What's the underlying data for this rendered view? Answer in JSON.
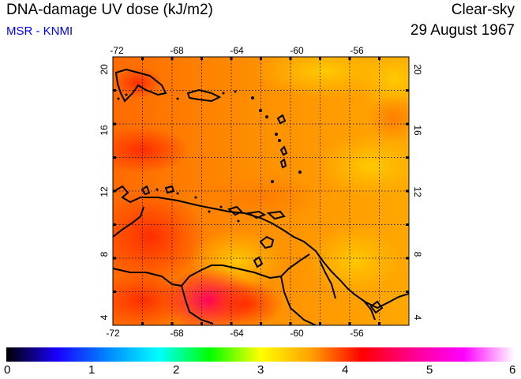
{
  "header": {
    "title": "DNA-damage UV dose (kJ/m2)",
    "source": "MSR - KNMI",
    "sky_condition": "Clear-sky",
    "date": "29 August 1967"
  },
  "map": {
    "lon_ticks": [
      "-72",
      "-68",
      "-64",
      "-60",
      "-56"
    ],
    "lat_ticks": [
      "20",
      "16",
      "12",
      "8",
      "4"
    ],
    "lon_range": [
      -72,
      -52
    ],
    "lat_range": [
      4,
      20
    ],
    "gridlines": true
  },
  "colorbar": {
    "labels": [
      "0",
      "1",
      "2",
      "3",
      "4",
      "5",
      "6"
    ],
    "range": [
      0,
      6
    ],
    "colors": [
      "#000000",
      "#1a00ff",
      "#0088ff",
      "#00ffff",
      "#00ff00",
      "#ffff00",
      "#ffa000",
      "#ff0000",
      "#ff0090",
      "#ff00ff",
      "#ffffff"
    ]
  }
}
